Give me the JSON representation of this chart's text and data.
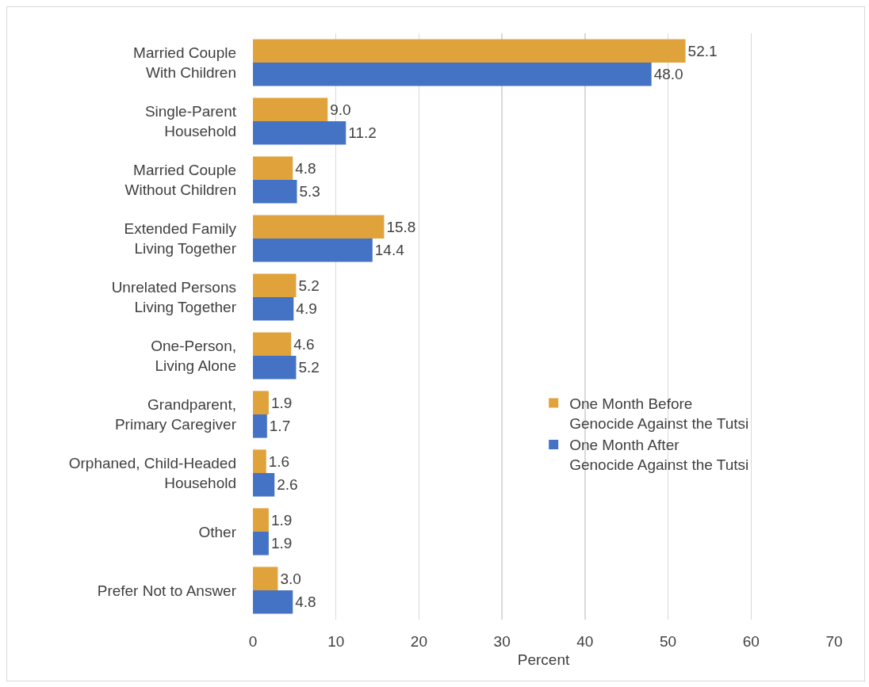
{
  "chart_data": {
    "type": "bar",
    "orientation": "horizontal",
    "categories": [
      "Married Couple\nWith Children",
      "Single-Parent\nHousehold",
      "Married Couple\nWithout Children",
      "Extended Family\nLiving Together",
      "Unrelated Persons\nLiving Together",
      "One-Person,\nLiving Alone",
      "Grandparent,\nPrimary Caregiver",
      "Orphaned, Child-Headed\nHousehold",
      "Other",
      "Prefer Not to Answer"
    ],
    "series": [
      {
        "name": "One Month Before\nGenocide Against the Tutsi",
        "color": "#e0a23a",
        "values": [
          52.1,
          9.0,
          4.8,
          15.8,
          5.2,
          4.6,
          1.9,
          1.6,
          1.9,
          3.0
        ],
        "value_labels": [
          "52.1",
          "9.0",
          "4.8",
          "15.8",
          "5.2",
          "4.6",
          "1.9",
          "1.6",
          "1.9",
          "3.0"
        ]
      },
      {
        "name": "One Month After\nGenocide Against the Tutsi",
        "color": "#4472c4",
        "values": [
          48.0,
          11.2,
          5.3,
          14.4,
          4.9,
          5.2,
          1.7,
          2.6,
          1.9,
          4.8
        ],
        "value_labels": [
          "48.0",
          "11.2",
          "5.3",
          "14.4",
          "4.9",
          "5.2",
          "1.7",
          "2.6",
          "1.9",
          "4.8"
        ]
      }
    ],
    "xlim": [
      0,
      70
    ],
    "xticks": [
      0,
      10,
      20,
      30,
      40,
      50,
      60,
      70
    ],
    "xlabel": "Percent",
    "grid": "x",
    "legend": "right"
  }
}
